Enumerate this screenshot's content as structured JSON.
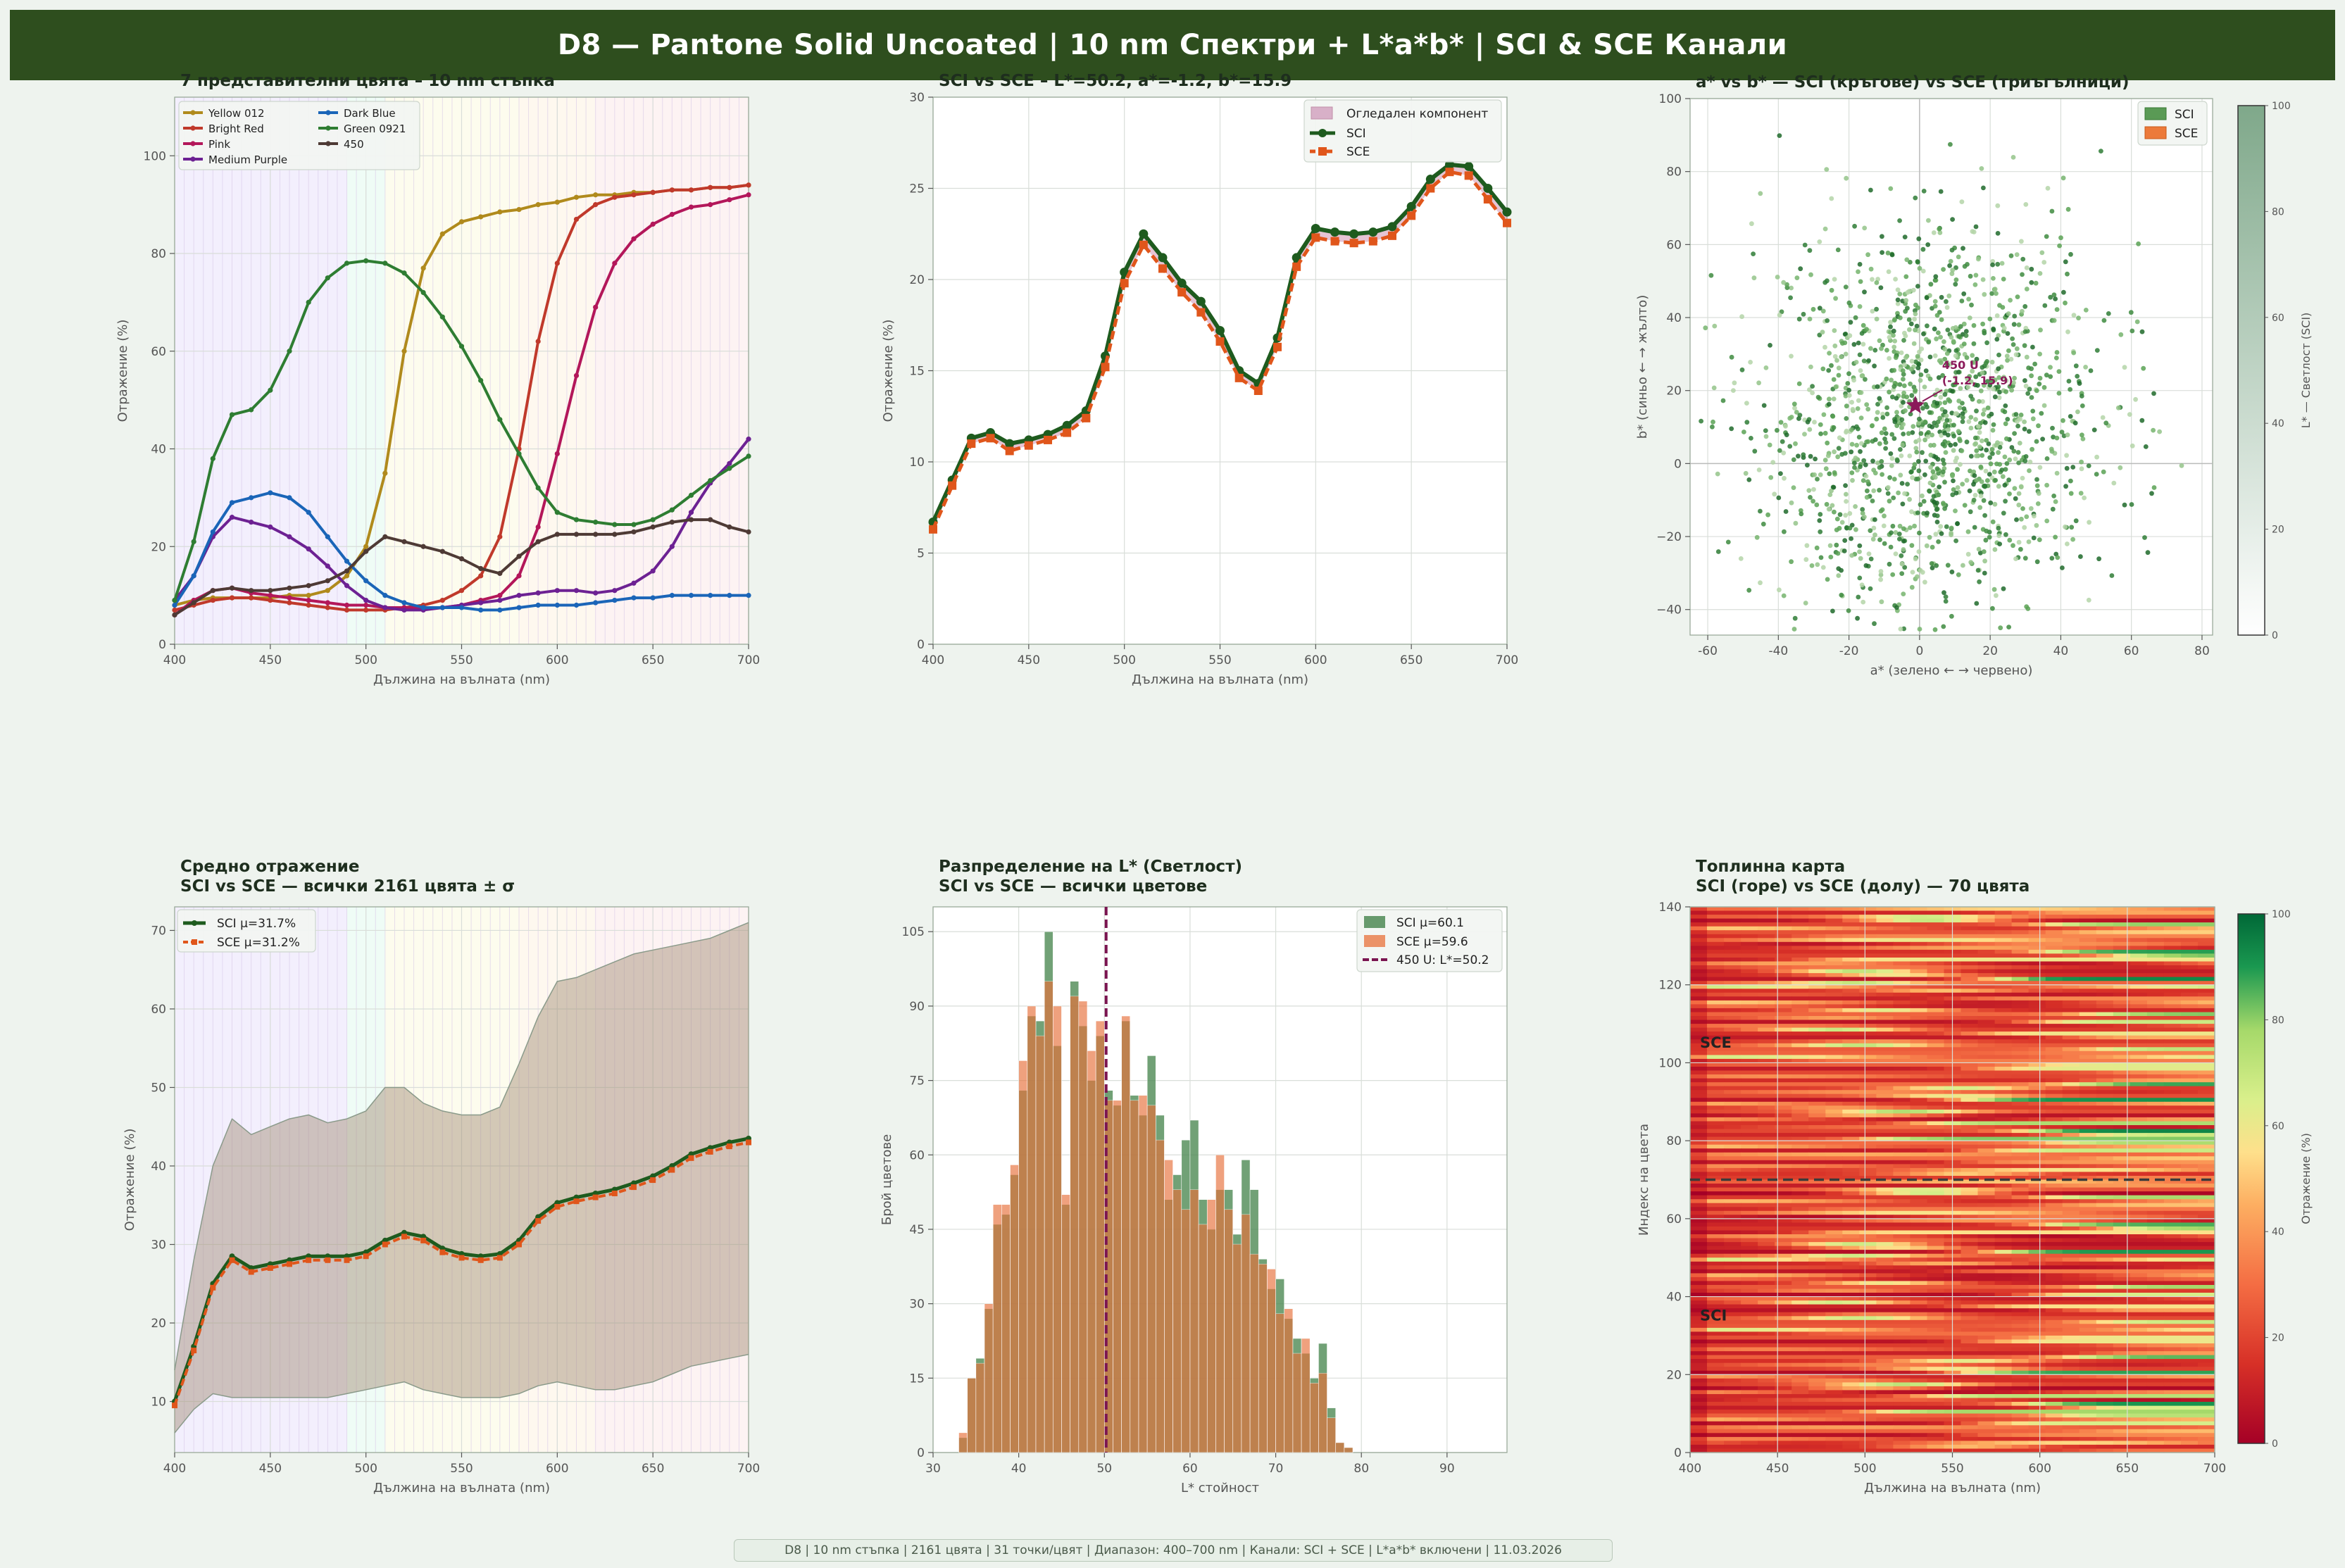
{
  "banner": {
    "title": "D8 — Pantone Solid Uncoated  |  10 nm Спектри + L*a*b*  |  SCI & SCE Канали"
  },
  "footer": {
    "text": "D8  |  10 nm стъпка  |  2161 цвята  |  31 точки/цвят  |  Диапазон: 400–700 nm  |  Канали: SCI + SCE  |  L*a*b* включени  |  11.03.2026"
  },
  "colors": {
    "sci": "#1e5b1e",
    "sce": "#e0561b",
    "banner": "#2e4e1e",
    "background": "#eef3ee"
  },
  "chart_data": [
    {
      "id": "spectra",
      "type": "line",
      "title": "7 представителни цвята – 10 nm стъпка",
      "xlabel": "Дължина на вълната (nm)",
      "ylabel": "Отражение (%)",
      "xlim": [
        400,
        700
      ],
      "ylim": [
        0,
        112
      ],
      "xticks": [
        400,
        450,
        500,
        550,
        600,
        650,
        700
      ],
      "yticks": [
        0,
        20,
        40,
        60,
        80,
        100
      ],
      "grid": true,
      "legend_position": "top-left",
      "x": [
        400,
        410,
        420,
        430,
        440,
        450,
        460,
        470,
        480,
        490,
        500,
        510,
        520,
        530,
        540,
        550,
        560,
        570,
        580,
        590,
        600,
        610,
        620,
        630,
        640,
        650,
        660,
        670,
        680,
        690,
        700
      ],
      "series": [
        {
          "name": "Yellow 012",
          "color": "#b08a1c",
          "values": [
            8,
            9,
            9.5,
            9.5,
            9.5,
            9.5,
            10,
            10,
            11,
            14,
            20,
            35,
            60,
            77,
            84,
            86.5,
            87.5,
            88.5,
            89,
            90,
            90.5,
            91.5,
            92,
            92,
            92.5,
            92.5,
            93,
            93,
            93.5,
            93.5,
            94
          ]
        },
        {
          "name": "Bright Red",
          "color": "#c0392b",
          "values": [
            7,
            8,
            9,
            9.5,
            9.5,
            9,
            8.5,
            8,
            7.5,
            7,
            7,
            7,
            7.5,
            8,
            9,
            11,
            14,
            22,
            40,
            62,
            78,
            87,
            90,
            91.5,
            92,
            92.5,
            93,
            93,
            93.5,
            93.5,
            94
          ]
        },
        {
          "name": "Pink",
          "color": "#b3175a",
          "values": [
            6,
            9,
            11,
            11.5,
            10.5,
            10,
            9.5,
            9,
            8.5,
            8,
            8,
            7.5,
            7.5,
            7.5,
            7.5,
            8,
            9,
            10,
            14,
            24,
            39,
            55,
            69,
            78,
            83,
            86,
            88,
            89.5,
            90,
            91,
            92
          ]
        },
        {
          "name": "Medium Purple",
          "color": "#6d2193",
          "values": [
            9,
            14,
            22,
            26,
            25,
            24,
            22,
            19.5,
            16,
            12,
            9,
            7.5,
            7,
            7,
            7.5,
            8,
            8.5,
            9,
            10,
            10.5,
            11,
            11,
            10.5,
            11,
            12.5,
            15,
            20,
            27,
            33,
            37,
            42
          ]
        },
        {
          "name": "Dark Blue",
          "color": "#1a65b8",
          "values": [
            8,
            14,
            23,
            29,
            30,
            31,
            30,
            27,
            22,
            17,
            13,
            10,
            8.5,
            7.5,
            7.5,
            7.5,
            7,
            7,
            7.5,
            8,
            8,
            8,
            8.5,
            9,
            9.5,
            9.5,
            10,
            10,
            10,
            10,
            10
          ]
        },
        {
          "name": "Green 0921",
          "color": "#2e7d32",
          "values": [
            9,
            21,
            38,
            47,
            48,
            52,
            60,
            70,
            75,
            78,
            78.5,
            78,
            76,
            72,
            67,
            61,
            54,
            46,
            39,
            32,
            27,
            25.5,
            25,
            24.5,
            24.5,
            25.5,
            27.5,
            30.5,
            33.5,
            36,
            38.5
          ]
        },
        {
          "name": "450",
          "color": "#4e3a35",
          "values": [
            6,
            8.5,
            11,
            11.5,
            11,
            11,
            11.5,
            12,
            13,
            15,
            19,
            22,
            21,
            20,
            19,
            17.5,
            15.5,
            14.5,
            18,
            21,
            22.5,
            22.5,
            22.5,
            22.5,
            23,
            24,
            25,
            25.5,
            25.5,
            24,
            23
          ]
        }
      ]
    },
    {
      "id": "sci_sce_single",
      "type": "line",
      "title": "SCI vs SCE – L*=50.2, a*=-1.2, b*=15.9",
      "xlabel": "Дължина на вълната (nm)",
      "ylabel": "Отражение (%)",
      "xlim": [
        400,
        700
      ],
      "ylim": [
        0,
        30
      ],
      "xticks": [
        400,
        450,
        500,
        550,
        600,
        650,
        700
      ],
      "yticks": [
        0,
        5,
        10,
        15,
        20,
        25,
        30
      ],
      "grid": true,
      "legend_position": "top-right",
      "legend": [
        "Огледален компонент",
        "SCI",
        "SCE"
      ],
      "x": [
        400,
        410,
        420,
        430,
        440,
        450,
        460,
        470,
        480,
        490,
        500,
        510,
        520,
        530,
        540,
        550,
        560,
        570,
        580,
        590,
        600,
        610,
        620,
        630,
        640,
        650,
        660,
        670,
        680,
        690,
        700
      ],
      "series": [
        {
          "name": "SCI",
          "color": "#1e5b1e",
          "values": [
            6.7,
            9.0,
            11.3,
            11.6,
            11.0,
            11.2,
            11.5,
            12.0,
            12.8,
            15.8,
            20.4,
            22.5,
            21.2,
            19.8,
            18.8,
            17.2,
            15.0,
            14.3,
            16.8,
            21.2,
            22.8,
            22.6,
            22.5,
            22.6,
            22.9,
            24.0,
            25.5,
            26.3,
            26.2,
            25.0,
            23.7
          ]
        },
        {
          "name": "SCE",
          "color": "#e0561b",
          "values": [
            6.3,
            8.7,
            11.0,
            11.3,
            10.6,
            10.9,
            11.2,
            11.6,
            12.4,
            15.2,
            19.8,
            21.9,
            20.6,
            19.3,
            18.2,
            16.6,
            14.6,
            13.9,
            16.3,
            20.7,
            22.3,
            22.1,
            22.0,
            22.1,
            22.4,
            23.5,
            25.0,
            25.9,
            25.7,
            24.4,
            23.1
          ]
        }
      ]
    },
    {
      "id": "ab_scatter",
      "type": "scatter",
      "title": "a* vs b* — SCI (кръгове) vs SCE (триъгълници)",
      "xlabel": "a*  (зелено ← → червено)",
      "ylabel": "b*  (синьо ← → жълто)",
      "xlim": [
        -65,
        83
      ],
      "ylim": [
        -47,
        100
      ],
      "xticks": [
        -60,
        -40,
        -20,
        0,
        20,
        40,
        60,
        80
      ],
      "yticks": [
        -40,
        -20,
        0,
        20,
        40,
        60,
        80,
        100
      ],
      "grid": true,
      "legend_position": "top-right",
      "legend": [
        "SCI",
        "SCE"
      ],
      "colorbar": {
        "label": "L* — Светлост (SCI)",
        "range": [
          0,
          100
        ],
        "ticks": [
          0,
          20,
          40,
          60,
          80,
          100
        ]
      },
      "highlight": {
        "label": "450 U",
        "coords": "(-1.2, 15.9)",
        "a": -1.2,
        "b": 15.9
      },
      "points": 2161,
      "distribution": {
        "a_mean": 3,
        "a_sd": 24,
        "b_mean": 10,
        "b_sd": 26
      }
    },
    {
      "id": "mean_reflectance",
      "type": "area",
      "title": "Средно отражение",
      "subtitle": "SCI vs SCE — всички 2161 цвята ± σ",
      "xlabel": "Дължина на вълната (nm)",
      "ylabel": "Отражение (%)",
      "xlim": [
        400,
        700
      ],
      "ylim": [
        3.5,
        73
      ],
      "xticks": [
        400,
        450,
        500,
        550,
        600,
        650,
        700
      ],
      "yticks": [
        10,
        20,
        30,
        40,
        50,
        60,
        70
      ],
      "grid": true,
      "legend_position": "top-left",
      "x": [
        400,
        410,
        420,
        430,
        440,
        450,
        460,
        470,
        480,
        490,
        500,
        510,
        520,
        530,
        540,
        550,
        560,
        570,
        580,
        590,
        600,
        610,
        620,
        630,
        640,
        650,
        660,
        670,
        680,
        690,
        700
      ],
      "series": [
        {
          "name": "SCI  μ=31.7%",
          "color": "#1e5b1e",
          "values": [
            10,
            17,
            25,
            28.5,
            27,
            27.5,
            28,
            28.5,
            28.5,
            28.5,
            29,
            30.5,
            31.5,
            31,
            29.5,
            28.8,
            28.5,
            28.8,
            30.5,
            33.5,
            35.3,
            36,
            36.5,
            37,
            37.8,
            38.7,
            40,
            41.5,
            42.3,
            43,
            43.5
          ]
        },
        {
          "name": "SCE  μ=31.2%",
          "color": "#e0561b",
          "values": [
            9.5,
            16.5,
            24.5,
            28,
            26.5,
            27,
            27.5,
            28,
            28,
            28,
            28.5,
            30,
            31,
            30.5,
            29,
            28.3,
            28,
            28.3,
            30,
            33,
            34.8,
            35.5,
            36,
            36.5,
            37.3,
            38.2,
            39.5,
            41,
            41.8,
            42.5,
            43
          ]
        }
      ],
      "sigma_band": {
        "upper": [
          14,
          28,
          40,
          46,
          44,
          45,
          46,
          46.5,
          45.5,
          46,
          47,
          50,
          50,
          48,
          47,
          46.5,
          46.5,
          47.5,
          53,
          59,
          63.5,
          64,
          65,
          66,
          67,
          67.5,
          68,
          68.5,
          69,
          70,
          71
        ],
        "lower": [
          6,
          9,
          11,
          10.5,
          10.5,
          10.5,
          10.5,
          10.5,
          10.5,
          11,
          11.5,
          12,
          12.5,
          11.5,
          11,
          10.5,
          10.5,
          10.5,
          11,
          12,
          12.5,
          12,
          11.5,
          11.5,
          12,
          12.5,
          13.5,
          14.5,
          15,
          15.5,
          16
        ]
      }
    },
    {
      "id": "lightness_hist",
      "type": "bar",
      "title": "Разпределение на L* (Светлост)",
      "subtitle": "SCI vs SCE — всички цветове",
      "xlabel": "L* стойност",
      "ylabel": "Брой цветове",
      "xlim": [
        30,
        97
      ],
      "ylim": [
        0,
        110
      ],
      "xticks": [
        30,
        40,
        50,
        60,
        70,
        80,
        90
      ],
      "yticks": [
        0,
        15,
        30,
        45,
        60,
        75,
        90,
        105
      ],
      "grid": true,
      "legend_position": "top-right",
      "bin_start": 33,
      "bin_width": 1,
      "series": [
        {
          "name": "SCI  μ=60.1",
          "color": "#1e5b1e",
          "values": [
            3,
            15,
            19,
            29,
            46,
            48,
            56,
            73,
            88,
            87,
            105,
            82,
            50,
            95,
            86,
            75,
            84,
            73,
            70,
            87,
            72,
            68,
            80,
            68,
            51,
            56,
            63,
            67,
            51,
            45,
            53,
            53,
            44,
            59,
            53,
            39,
            33,
            35,
            27,
            23,
            20,
            15,
            22,
            9,
            2,
            1
          ]
        },
        {
          "name": "SCE  μ=59.6",
          "color": "#e0561b",
          "values": [
            4,
            15,
            18,
            30,
            50,
            50,
            58,
            79,
            90,
            84,
            95,
            90,
            52,
            92,
            91,
            81,
            87,
            71,
            71,
            88,
            71,
            72,
            70,
            63,
            59,
            53,
            49,
            53,
            46,
            51,
            60,
            49,
            42,
            48,
            40,
            38,
            37,
            28,
            29,
            20,
            23,
            14,
            16,
            7,
            2,
            1
          ]
        }
      ],
      "marker": {
        "label": "450 U: L*=50.2",
        "value": 50.2,
        "color": "#7a1450"
      }
    },
    {
      "id": "heatmap",
      "type": "heatmap",
      "title": "Топлинна карта",
      "subtitle": "SCI (горе) vs SCE (долу) — 70 цвята",
      "xlabel": "Дължина на вълната (nm)",
      "ylabel": "Индекс на цвета",
      "xlim": [
        400,
        700
      ],
      "ylim": [
        0,
        140
      ],
      "xticks": [
        400,
        450,
        500,
        550,
        600,
        650,
        700
      ],
      "yticks": [
        0,
        20,
        40,
        60,
        80,
        100,
        120,
        140
      ],
      "labels": [
        "SCI",
        "SCE"
      ],
      "divider_row": 70,
      "rows": 140,
      "cols": 31,
      "colorbar": {
        "label": "Отражение (%)",
        "range": [
          0,
          100
        ],
        "ticks": [
          0,
          20,
          40,
          60,
          80,
          100
        ]
      }
    }
  ]
}
